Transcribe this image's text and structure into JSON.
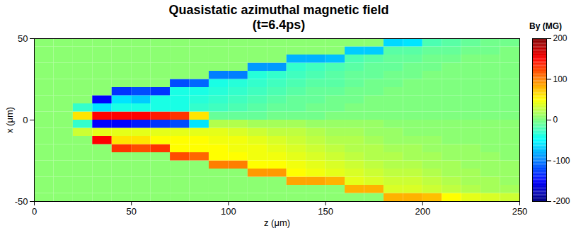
{
  "chart_data": {
    "type": "heatmap",
    "title": "Quasistatic azimuthal magnetic field",
    "subtitle": "(t=6.4ps)",
    "x_label": "z (μm)",
    "y_label": "x (μm)",
    "xlim": [
      0,
      250
    ],
    "ylim": [
      -50,
      50
    ],
    "xticks": [
      0,
      50,
      100,
      150,
      200,
      250
    ],
    "yticks": [
      -50,
      0,
      50
    ],
    "color": "jet",
    "colorbar": {
      "label": "By (MG)",
      "range": [
        -200,
        200
      ],
      "ticks": [
        -200,
        -100,
        0,
        100,
        200
      ]
    },
    "cells": {
      "z": [
        5,
        15,
        25,
        35,
        45,
        55,
        65,
        75,
        85,
        95,
        105,
        115,
        125,
        135,
        145,
        155,
        165,
        175,
        185,
        195,
        205,
        215,
        225,
        235,
        245
      ],
      "x": [
        -47.5,
        -42.5,
        -37.5,
        -32.5,
        -27.5,
        -22.5,
        -17.5,
        -12.5,
        -7.5,
        -2.5,
        2.5,
        7.5,
        12.5,
        17.5,
        22.5,
        27.5,
        32.5,
        37.5,
        42.5,
        47.5
      ],
      "values": [
        [
          5,
          5,
          5,
          5,
          5,
          5,
          5,
          5,
          5,
          5,
          5,
          5,
          5,
          5,
          5,
          5,
          5,
          5,
          5,
          5
        ],
        [
          5,
          5,
          5,
          5,
          5,
          5,
          5,
          5,
          5,
          5,
          5,
          5,
          5,
          5,
          5,
          5,
          5,
          5,
          5,
          5
        ],
        [
          5,
          5,
          5,
          5,
          5,
          5,
          5,
          5,
          30,
          -30,
          60,
          -30,
          5,
          5,
          5,
          5,
          5,
          5,
          5,
          5
        ],
        [
          5,
          5,
          5,
          5,
          5,
          5,
          5,
          150,
          40,
          -150,
          150,
          -60,
          -150,
          5,
          5,
          5,
          5,
          5,
          5,
          5
        ],
        [
          5,
          5,
          5,
          5,
          5,
          5,
          130,
          60,
          40,
          -150,
          150,
          -40,
          -60,
          -130,
          5,
          5,
          5,
          5,
          5,
          5
        ],
        [
          5,
          5,
          5,
          5,
          5,
          5,
          120,
          60,
          40,
          -140,
          150,
          -40,
          -70,
          -120,
          5,
          5,
          5,
          5,
          5,
          5
        ],
        [
          5,
          5,
          5,
          5,
          5,
          5,
          130,
          50,
          40,
          -130,
          140,
          -40,
          -40,
          -130,
          5,
          5,
          5,
          5,
          5,
          5
        ],
        [
          5,
          5,
          5,
          5,
          5,
          120,
          50,
          50,
          40,
          -120,
          130,
          -40,
          -40,
          -40,
          -120,
          5,
          5,
          5,
          5,
          5
        ],
        [
          5,
          5,
          5,
          5,
          5,
          110,
          50,
          50,
          40,
          -60,
          60,
          -30,
          -35,
          -40,
          -110,
          5,
          5,
          5,
          5,
          5
        ],
        [
          5,
          5,
          5,
          5,
          100,
          50,
          50,
          45,
          40,
          20,
          -10,
          -25,
          -30,
          -35,
          -40,
          -100,
          5,
          5,
          5,
          5
        ],
        [
          5,
          5,
          5,
          5,
          100,
          50,
          45,
          45,
          35,
          20,
          -10,
          -20,
          -25,
          -30,
          -35,
          -100,
          5,
          5,
          5,
          5
        ],
        [
          5,
          5,
          5,
          90,
          50,
          45,
          45,
          40,
          30,
          15,
          -10,
          -15,
          -20,
          -25,
          -30,
          -35,
          -90,
          5,
          5,
          5
        ],
        [
          5,
          5,
          5,
          90,
          50,
          45,
          40,
          35,
          25,
          15,
          -5,
          -10,
          -15,
          -20,
          -25,
          -30,
          -90,
          5,
          5,
          5
        ],
        [
          5,
          5,
          85,
          50,
          45,
          40,
          35,
          30,
          25,
          15,
          -5,
          -10,
          -10,
          -15,
          -20,
          -25,
          -30,
          -80,
          5,
          5
        ],
        [
          5,
          5,
          85,
          45,
          40,
          35,
          30,
          25,
          20,
          10,
          -5,
          -5,
          -10,
          -10,
          -15,
          -20,
          -25,
          -80,
          5,
          5
        ],
        [
          5,
          5,
          80,
          40,
          35,
          30,
          25,
          20,
          15,
          10,
          0,
          -5,
          -5,
          -10,
          -15,
          -15,
          -20,
          -75,
          5,
          5
        ],
        [
          5,
          80,
          40,
          35,
          30,
          25,
          20,
          20,
          15,
          10,
          0,
          0,
          -5,
          -5,
          -10,
          -10,
          -15,
          -20,
          -70,
          5
        ],
        [
          5,
          80,
          35,
          30,
          25,
          20,
          20,
          15,
          10,
          10,
          0,
          0,
          0,
          -5,
          -5,
          -10,
          -10,
          -15,
          -70,
          5
        ],
        [
          80,
          35,
          30,
          25,
          20,
          20,
          15,
          10,
          10,
          5,
          0,
          0,
          0,
          0,
          -5,
          -5,
          -10,
          -10,
          -15,
          -65
        ],
        [
          80,
          35,
          30,
          25,
          20,
          15,
          15,
          10,
          5,
          5,
          0,
          0,
          0,
          0,
          0,
          -5,
          -5,
          -10,
          -15,
          -60
        ],
        [
          75,
          30,
          25,
          20,
          15,
          15,
          10,
          10,
          5,
          5,
          0,
          0,
          0,
          0,
          0,
          0,
          -5,
          -5,
          -10,
          -20
        ],
        [
          50,
          25,
          20,
          15,
          15,
          10,
          10,
          5,
          5,
          5,
          0,
          0,
          0,
          0,
          0,
          0,
          0,
          -5,
          -10,
          -15
        ],
        [
          40,
          20,
          15,
          15,
          10,
          10,
          10,
          5,
          5,
          5,
          0,
          0,
          0,
          0,
          0,
          0,
          0,
          0,
          -5,
          -10
        ],
        [
          35,
          15,
          15,
          10,
          10,
          10,
          5,
          5,
          5,
          5,
          0,
          0,
          0,
          0,
          0,
          0,
          0,
          0,
          -5,
          -5
        ],
        [
          30,
          15,
          10,
          10,
          10,
          5,
          5,
          5,
          5,
          5,
          0,
          0,
          0,
          0,
          0,
          0,
          0,
          0,
          0,
          -5
        ]
      ]
    }
  }
}
